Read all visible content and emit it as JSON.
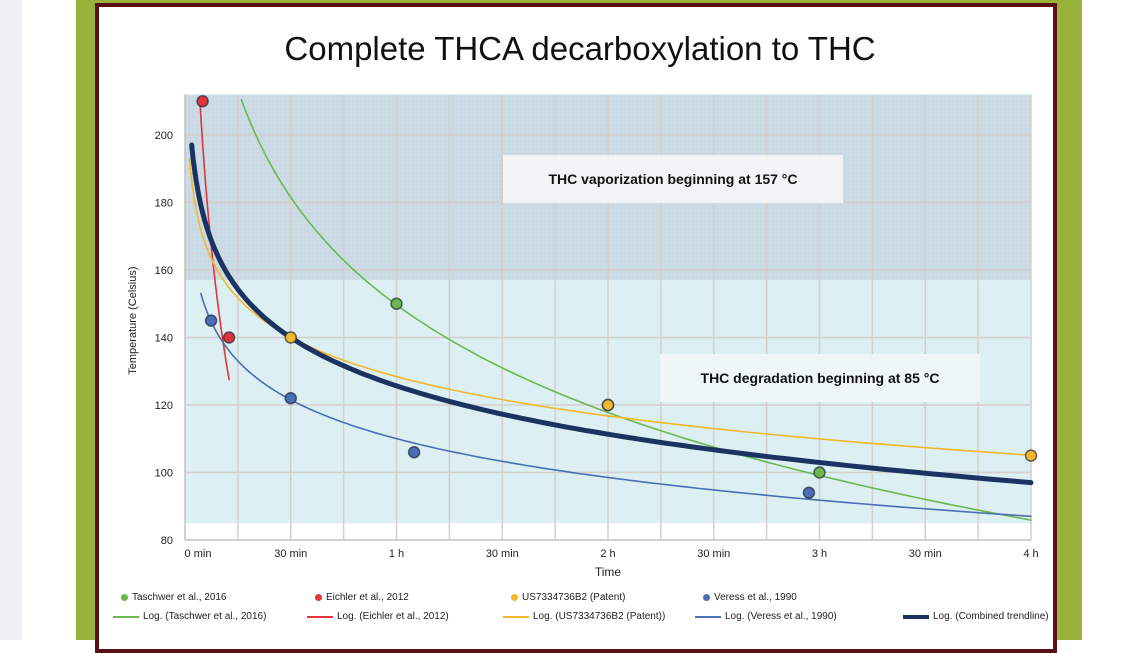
{
  "chart_data": {
    "type": "scatter",
    "title": "Complete THCA decarboxylation to THC",
    "xlabel": "Time",
    "ylabel": "Temperature (Celsius)",
    "xlim": [
      0,
      240
    ],
    "ylim": [
      80,
      212
    ],
    "x_unit": "minutes",
    "x_ticks": [
      {
        "v": 0,
        "label": "0 min"
      },
      {
        "v": 30,
        "label": "30 min"
      },
      {
        "v": 60,
        "label": "1 h"
      },
      {
        "v": 90,
        "label": "30 min"
      },
      {
        "v": 120,
        "label": "2 h"
      },
      {
        "v": 150,
        "label": "30 min"
      },
      {
        "v": 180,
        "label": "3 h"
      },
      {
        "v": 210,
        "label": "30 min"
      },
      {
        "v": 240,
        "label": "4 h"
      }
    ],
    "y_ticks": [
      80,
      100,
      120,
      140,
      160,
      180,
      200
    ],
    "grid": true,
    "legend_position": "bottom",
    "regions": [
      {
        "label": "THC vaporization beginning at 157 °C",
        "from": 157,
        "to": 212,
        "color": "#c9dde6",
        "hatched": true
      },
      {
        "label": "THC degradation beginning at 85 °C",
        "from": 85,
        "to": 157,
        "color": "#dcefF2",
        "hatched": false
      }
    ],
    "series": [
      {
        "name": "Taschwer et al., 2016",
        "color": "#6cb84f",
        "points": [
          [
            60,
            150
          ],
          [
            120,
            120
          ],
          [
            180,
            100
          ]
        ],
        "trend_name": "Log. (Taschwer et al., 2016)",
        "trend": {
          "a": 338,
          "b": -46,
          "from": 16,
          "to": 240
        }
      },
      {
        "name": "Eichler et al., 2012",
        "color": "#e0353a",
        "points": [
          [
            5,
            210
          ],
          [
            12.5,
            140
          ]
        ],
        "trend_name": "Log. (Eichler et al., 2012)",
        "trend": {
          "a": 320.5,
          "b": -76.4,
          "from": 4.2,
          "to": 12.5
        }
      },
      {
        "name": "US7334736B2 (Patent)",
        "color": "#f2b82e",
        "points": [
          [
            30,
            140
          ],
          [
            120,
            120
          ],
          [
            240,
            105
          ]
        ],
        "trend_name": "Log. (US7334736B2 (Patent))",
        "trend": {
          "a": 197.2,
          "b": -16.8,
          "from": 1.3,
          "to": 240
        }
      },
      {
        "name": "Veress et al., 1990",
        "color": "#4a6fb5",
        "points": [
          [
            7.4,
            145
          ],
          [
            30,
            122
          ],
          [
            65,
            106
          ],
          [
            177,
            94
          ]
        ],
        "trend_name": "Log. (Veress et al., 1990)",
        "trend": {
          "a": 178,
          "b": -16.6,
          "from": 4.5,
          "to": 240
        }
      }
    ],
    "combined": {
      "name": "Log. (Combined trendline)",
      "color": "#1c3361",
      "trend": {
        "a": 210.3,
        "b": -20.67,
        "from": 1.9,
        "to": 240
      }
    }
  }
}
